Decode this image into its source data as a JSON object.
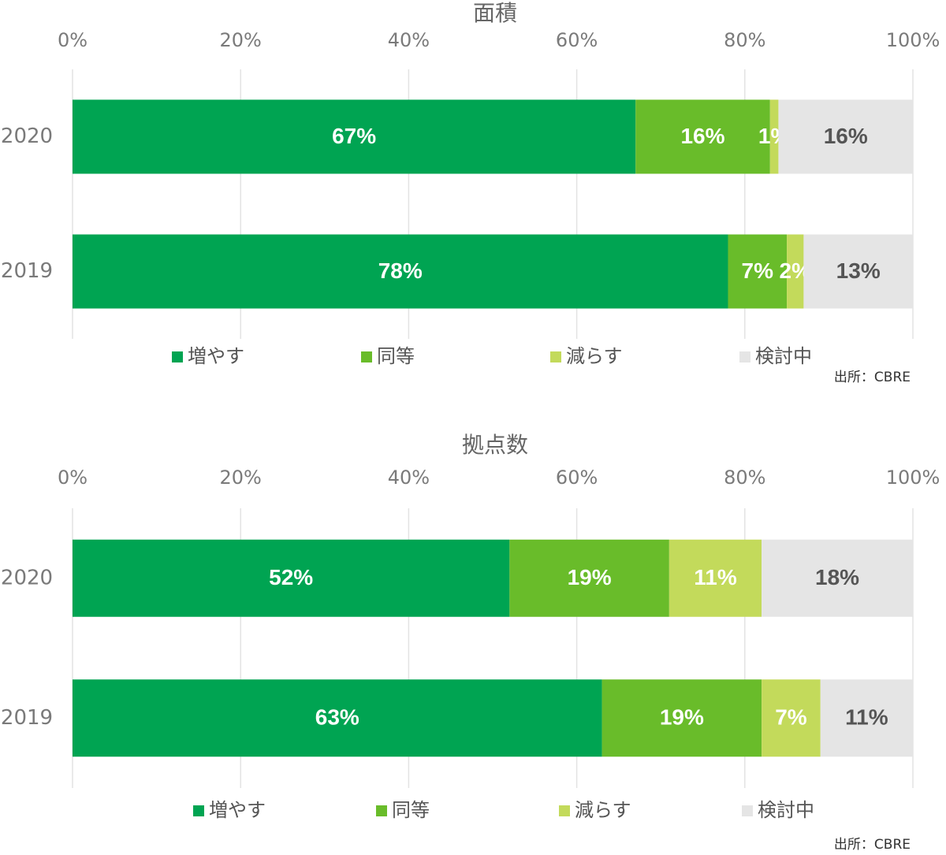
{
  "chart_data": [
    {
      "type": "stacked-bar-horizontal",
      "title": "面積",
      "source": "出所：CBRE",
      "categories": [
        "2020",
        "2019"
      ],
      "xlim": [
        0,
        100
      ],
      "xticks": [
        {
          "value": 0,
          "label": "0%"
        },
        {
          "value": 20,
          "label": "20%"
        },
        {
          "value": 40,
          "label": "40%"
        },
        {
          "value": 60,
          "label": "60%"
        },
        {
          "value": 80,
          "label": "80%"
        },
        {
          "value": 100,
          "label": "100%"
        }
      ],
      "grid": true,
      "series": [
        {
          "name": "増やす",
          "color": "#00a452",
          "values": [
            67,
            78
          ],
          "value_labels": [
            "67%",
            "78%"
          ]
        },
        {
          "name": "同等",
          "color": "#69bc2a",
          "values": [
            16,
            7
          ],
          "value_labels": [
            "16%",
            "7%"
          ]
        },
        {
          "name": "減らす",
          "color": "#c3da5b",
          "values": [
            1,
            2
          ],
          "value_labels": [
            "1%",
            "2%"
          ]
        },
        {
          "name": "検討中",
          "color": "#e5e5e5",
          "values": [
            16,
            13
          ],
          "value_labels": [
            "16%",
            "13%"
          ]
        }
      ]
    },
    {
      "type": "stacked-bar-horizontal",
      "title": "拠点数",
      "source": "出所：CBRE",
      "categories": [
        "2020",
        "2019"
      ],
      "xlim": [
        0,
        100
      ],
      "xticks": [
        {
          "value": 0,
          "label": "0%"
        },
        {
          "value": 20,
          "label": "20%"
        },
        {
          "value": 40,
          "label": "40%"
        },
        {
          "value": 60,
          "label": "60%"
        },
        {
          "value": 80,
          "label": "80%"
        },
        {
          "value": 100,
          "label": "100%"
        }
      ],
      "grid": true,
      "series": [
        {
          "name": "増やす",
          "color": "#00a452",
          "values": [
            52,
            63
          ],
          "value_labels": [
            "52%",
            "63%"
          ]
        },
        {
          "name": "同等",
          "color": "#69bc2a",
          "values": [
            19,
            19
          ],
          "value_labels": [
            "19%",
            "19%"
          ]
        },
        {
          "name": "減らす",
          "color": "#c3da5b",
          "values": [
            11,
            7
          ],
          "value_labels": [
            "11%",
            "7%"
          ]
        },
        {
          "name": "検討中",
          "color": "#e5e5e5",
          "values": [
            18,
            11
          ],
          "value_labels": [
            "18%",
            "11%"
          ]
        }
      ]
    }
  ]
}
